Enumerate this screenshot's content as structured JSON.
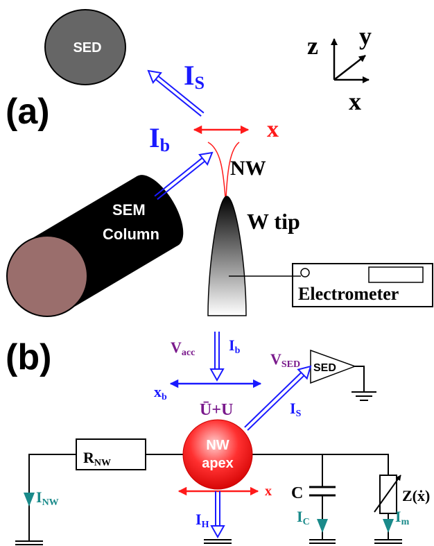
{
  "panel_a": {
    "label": "(a)",
    "sed": "SED",
    "axes": {
      "z": "z",
      "y": "y",
      "x": "x"
    },
    "i_s": {
      "main": "I",
      "sub": "S"
    },
    "i_b": {
      "main": "I",
      "sub": "b"
    },
    "x": "x",
    "nw": "NW",
    "sem_column": [
      "SEM",
      "Column"
    ],
    "w_tip": "W tip",
    "electrometer": "Electrometer"
  },
  "panel_b": {
    "label": "(b)",
    "v_acc": {
      "main": "V",
      "sub": "acc"
    },
    "i_b": {
      "main": "I",
      "sub": "b"
    },
    "x_b": {
      "main": "x",
      "sub": "b"
    },
    "potential": "Ū+U",
    "v_sed": {
      "main": "V",
      "sub": "SED"
    },
    "sed": "SED",
    "i_s": {
      "main": "I",
      "sub": "S"
    },
    "r_nw": {
      "main": "R",
      "sub": "NW"
    },
    "nw_apex": [
      "NW",
      "apex"
    ],
    "x": "x",
    "i_nw": {
      "main": "I",
      "sub": "NW"
    },
    "i_h": {
      "main": "I",
      "sub": "H"
    },
    "c": "C",
    "i_c": {
      "main": "I",
      "sub": "C"
    },
    "z": "Z(ẋ)",
    "i_m": {
      "main": "I",
      "sub": "m"
    }
  }
}
